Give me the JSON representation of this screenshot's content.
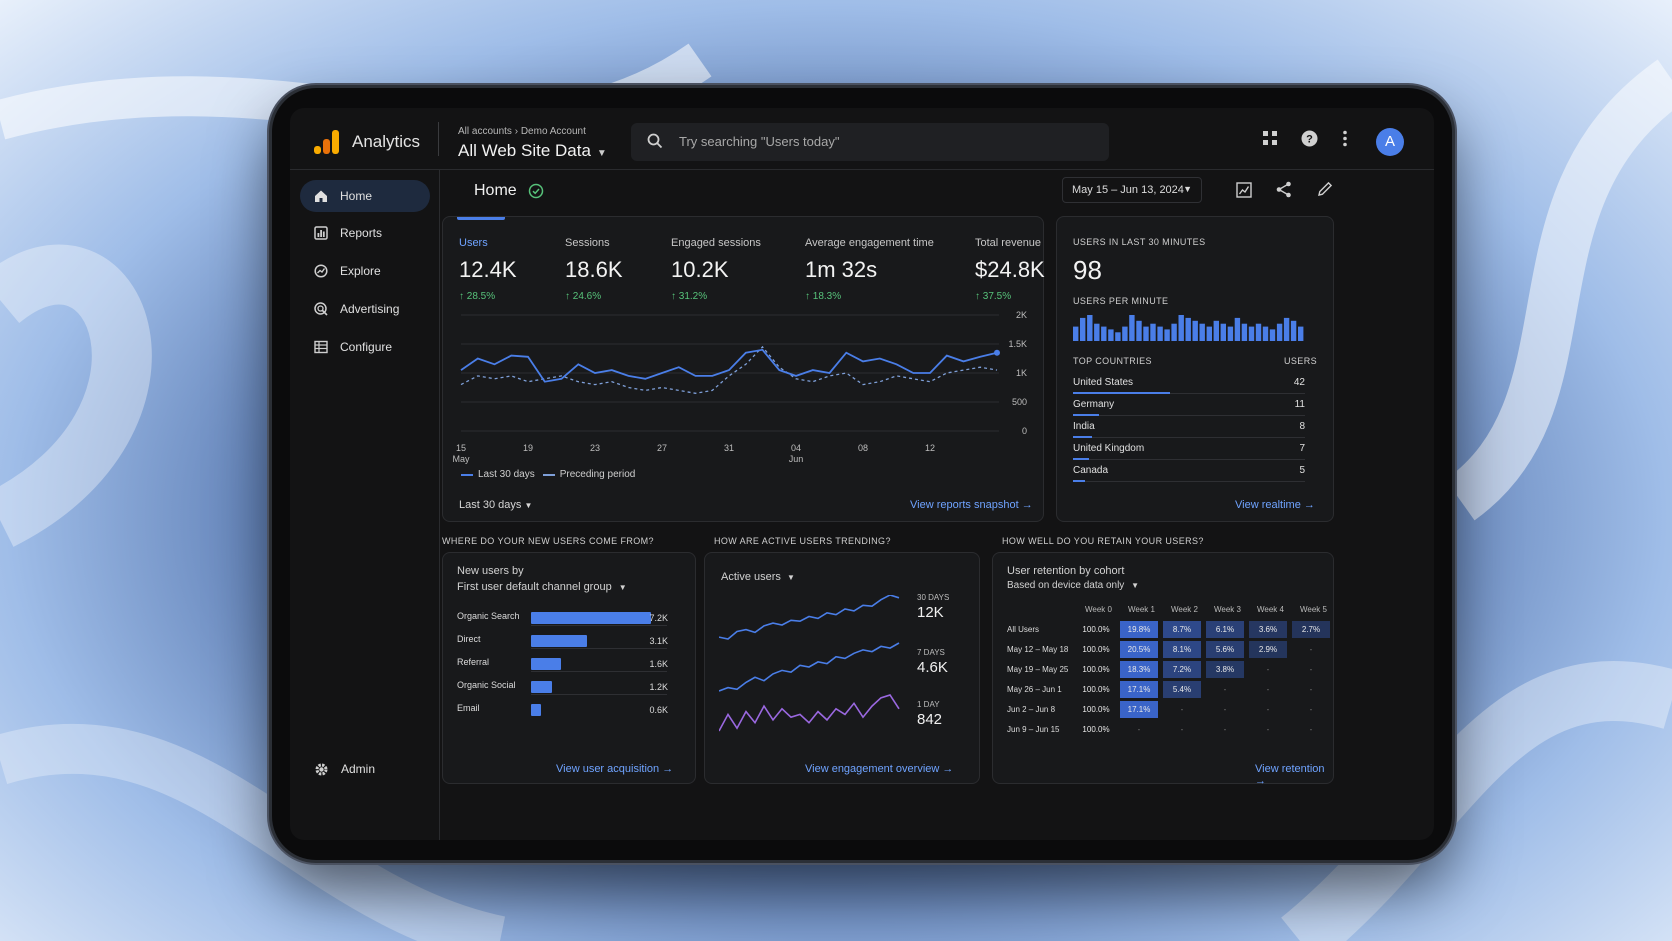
{
  "app": {
    "name": "Analytics"
  },
  "header": {
    "crumb_root": "All accounts",
    "crumb_sep": "›",
    "crumb_account": "Demo Account",
    "property": "All Web Site Data",
    "search_placeholder": "Try searching \"Users today\"",
    "avatar_letter": "A"
  },
  "sidebar": {
    "items": [
      {
        "label": "Home",
        "icon": "home-icon"
      },
      {
        "label": "Reports",
        "icon": "reports-icon"
      },
      {
        "label": "Explore",
        "icon": "explore-icon"
      },
      {
        "label": "Advertising",
        "icon": "advertising-icon"
      },
      {
        "label": "Configure",
        "icon": "configure-icon"
      }
    ],
    "admin": "Admin"
  },
  "page": {
    "title": "Home",
    "date_range": "May 15 – Jun 13, 2024"
  },
  "overview": {
    "metrics": [
      {
        "label": "Users",
        "value": "12.4K",
        "change": "28.5%"
      },
      {
        "label": "Sessions",
        "value": "18.6K",
        "change": "24.6%"
      },
      {
        "label": "Engaged sessions",
        "value": "10.2K",
        "change": "31.2%"
      },
      {
        "label": "Average engagement time",
        "value": "1m 32s",
        "change": "18.3%"
      },
      {
        "label": "Total revenue",
        "value": "$24.8K",
        "change": "37.5%"
      }
    ],
    "legend_current": "Last 30 days",
    "legend_previous": "Preceding period",
    "range_select": "Last 30 days",
    "link": "View reports snapshot"
  },
  "chart_data": [
    {
      "type": "line",
      "x_ticks": [
        "15",
        "19",
        "23",
        "27",
        "31",
        "04",
        "08",
        "12"
      ],
      "x_tick_sub": {
        "0": "May",
        "5": "Jun"
      },
      "y_ticks": [
        "2K",
        "1.5K",
        "1K",
        "500",
        "0"
      ],
      "ylim": [
        0,
        2000
      ],
      "series": [
        {
          "name": "Last 30 days",
          "values": [
            1050,
            1250,
            1150,
            1300,
            1280,
            850,
            900,
            1150,
            1000,
            1050,
            950,
            900,
            1000,
            1100,
            950,
            950,
            1050,
            1350,
            1400,
            1050,
            950,
            1050,
            1000,
            1350,
            1200,
            1250,
            1150,
            1000,
            1000,
            1300,
            1200,
            1280,
            1350
          ]
        },
        {
          "name": "Preceding period",
          "values": [
            800,
            950,
            900,
            950,
            850,
            900,
            950,
            850,
            800,
            850,
            750,
            700,
            750,
            700,
            650,
            700,
            950,
            1150,
            1450,
            1100,
            900,
            850,
            950,
            1000,
            800,
            850,
            950,
            900,
            850,
            1000,
            1050,
            1100,
            1050
          ]
        }
      ]
    },
    {
      "type": "bar",
      "title": "USERS PER MINUTE",
      "values": [
        5,
        8,
        9,
        6,
        5,
        4,
        3,
        5,
        9,
        7,
        5,
        6,
        5,
        4,
        6,
        9,
        8,
        7,
        6,
        5,
        7,
        6,
        5,
        8,
        6,
        5,
        6,
        5,
        4,
        6,
        8,
        7,
        5
      ]
    },
    {
      "type": "bar",
      "title": "New users by",
      "categories": [
        "Organic Search",
        "Direct",
        "Referral",
        "Organic Social",
        "Email"
      ],
      "values": [
        7.2,
        3.1,
        1.6,
        1.2,
        0.6
      ]
    },
    {
      "type": "line",
      "title": "Active users",
      "series": [
        {
          "name": "30 DAYS",
          "values": [
            40,
            38,
            46,
            48,
            45,
            52,
            55,
            53,
            58,
            57,
            62,
            60,
            66,
            64,
            70,
            68,
            74,
            73,
            80,
            85,
            82
          ]
        },
        {
          "name": "7 DAYS",
          "values": [
            20,
            22,
            21,
            25,
            28,
            26,
            30,
            32,
            31,
            35,
            34,
            37,
            36,
            40,
            39,
            42,
            44,
            43,
            46,
            45,
            48
          ]
        },
        {
          "name": "1 DAY",
          "values": [
            6,
            12,
            7,
            13,
            9,
            15,
            10,
            14,
            11,
            12,
            9,
            13,
            10,
            14,
            12,
            16,
            11,
            15,
            18,
            19,
            14
          ]
        }
      ]
    }
  ],
  "realtime": {
    "title": "USERS IN LAST 30 MINUTES",
    "count": "98",
    "per_minute": "USERS PER MINUTE",
    "countries_header": "TOP COUNTRIES",
    "users_header": "USERS",
    "countries": [
      {
        "name": "United States",
        "users": "42",
        "share": 0.42
      },
      {
        "name": "Germany",
        "users": "11",
        "share": 0.11
      },
      {
        "name": "India",
        "users": "8",
        "share": 0.08
      },
      {
        "name": "United Kingdom",
        "users": "7",
        "share": 0.07
      },
      {
        "name": "Canada",
        "users": "5",
        "share": 0.05
      }
    ],
    "link": "View realtime"
  },
  "acquisition": {
    "question": "WHERE DO YOUR NEW USERS COME FROM?",
    "title": "New users by",
    "dimension": "First user default channel group",
    "rows": [
      {
        "label": "Organic Search",
        "value": "7.2K"
      },
      {
        "label": "Direct",
        "value": "3.1K"
      },
      {
        "label": "Referral",
        "value": "1.6K"
      },
      {
        "label": "Organic Social",
        "value": "1.2K"
      },
      {
        "label": "Email",
        "value": "0.6K"
      }
    ],
    "link": "View user acquisition"
  },
  "trending": {
    "question": "HOW ARE ACTIVE USERS TRENDING?",
    "select": "Active users",
    "labels": [
      {
        "period": "30 DAYS",
        "value": "12K"
      },
      {
        "period": "7 DAYS",
        "value": "4.6K"
      },
      {
        "period": "1 DAY",
        "value": "842"
      }
    ],
    "link": "View engagement overview"
  },
  "retention": {
    "question": "HOW WELL DO YOU RETAIN YOUR USERS?",
    "title": "User retention by cohort",
    "subtitle": "Based on device data only",
    "weeks": [
      "Week 0",
      "Week 1",
      "Week 2",
      "Week 3",
      "Week 4",
      "Week 5"
    ],
    "rows": [
      {
        "label": "All Users",
        "cells": [
          "100.0%",
          "19.8%",
          "8.7%",
          "6.1%",
          "3.6%",
          "2.7%"
        ]
      },
      {
        "label": "May 12 – May 18",
        "cells": [
          "100.0%",
          "20.5%",
          "8.1%",
          "5.6%",
          "2.9%",
          "-"
        ]
      },
      {
        "label": "May 19 – May 25",
        "cells": [
          "100.0%",
          "18.3%",
          "7.2%",
          "3.8%",
          "-",
          "-"
        ]
      },
      {
        "label": "May 26 – Jun 1",
        "cells": [
          "100.0%",
          "17.1%",
          "5.4%",
          "-",
          "-",
          "-"
        ]
      },
      {
        "label": "Jun 2 – Jun 8",
        "cells": [
          "100.0%",
          "17.1%",
          "-",
          "-",
          "-",
          "-"
        ]
      },
      {
        "label": "Jun 9 – Jun 15",
        "cells": [
          "100.0%",
          "-",
          "-",
          "-",
          "-",
          "-"
        ]
      }
    ],
    "link": "View retention"
  },
  "colors": {
    "accent": "#4a7ee8",
    "link": "#6fa3ff",
    "positive": "#57c27a",
    "surface": "#18191b"
  }
}
